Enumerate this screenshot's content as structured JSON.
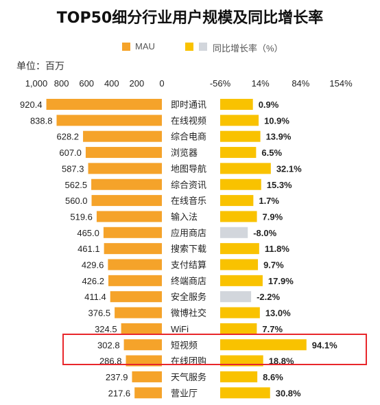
{
  "title": "TOP50细分行业用户规模及同比增长率",
  "unit_label": "单位：百万",
  "legend": {
    "mau_label": "MAU",
    "growth_label": "同比增长率（%）"
  },
  "colors": {
    "mau": "#f5a32a",
    "growth_positive": "#f9c200",
    "growth_negative": "#d2d6dc",
    "highlight": "#e8262b"
  },
  "chart_data": {
    "type": "bar",
    "layout": "butterfly",
    "categories": [
      "即时通讯",
      "在线视频",
      "综合电商",
      "浏览器",
      "地图导航",
      "综合资讯",
      "在线音乐",
      "输入法",
      "应用商店",
      "搜索下载",
      "支付结算",
      "终端商店",
      "安全服务",
      "微博社交",
      "WiFi",
      "短视频",
      "在线团购",
      "天气服务",
      "营业厅"
    ],
    "series": [
      {
        "name": "MAU",
        "unit": "百万",
        "values": [
          920.4,
          838.8,
          628.2,
          607.0,
          587.3,
          562.5,
          560.0,
          519.6,
          465.0,
          461.1,
          429.6,
          426.2,
          411.4,
          376.5,
          324.5,
          302.8,
          286.8,
          237.9,
          217.6
        ],
        "labels": [
          "920.4",
          "838.8",
          "628.2",
          "607.0",
          "587.3",
          "562.5",
          "560.0",
          "519.6",
          "465.0",
          "461.1",
          "429.6",
          "426.2",
          "411.4",
          "376.5",
          "324.5",
          "302.8",
          "286.8",
          "237.9",
          "217.6"
        ],
        "axis_ticks": [
          "1,000",
          "800",
          "600",
          "400",
          "200",
          "0"
        ],
        "xlim": [
          0,
          1000
        ]
      },
      {
        "name": "同比增长率（%）",
        "unit": "%",
        "values": [
          0.9,
          10.9,
          13.9,
          6.5,
          32.1,
          15.3,
          1.7,
          7.9,
          -8.0,
          11.8,
          9.7,
          17.9,
          -2.2,
          13.0,
          7.7,
          94.1,
          18.8,
          8.6,
          30.8
        ],
        "labels": [
          "0.9%",
          "10.9%",
          "13.9%",
          "6.5%",
          "32.1%",
          "15.3%",
          "1.7%",
          "7.9%",
          "-8.0%",
          "11.8%",
          "9.7%",
          "17.9%",
          "-2.2%",
          "13.0%",
          "7.7%",
          "94.1%",
          "18.8%",
          "8.6%",
          "30.8%"
        ],
        "axis_ticks": [
          "-56%",
          "14%",
          "84%",
          "154%"
        ],
        "xlim": [
          -56,
          154
        ]
      }
    ],
    "highlighted_category": "短视频"
  }
}
